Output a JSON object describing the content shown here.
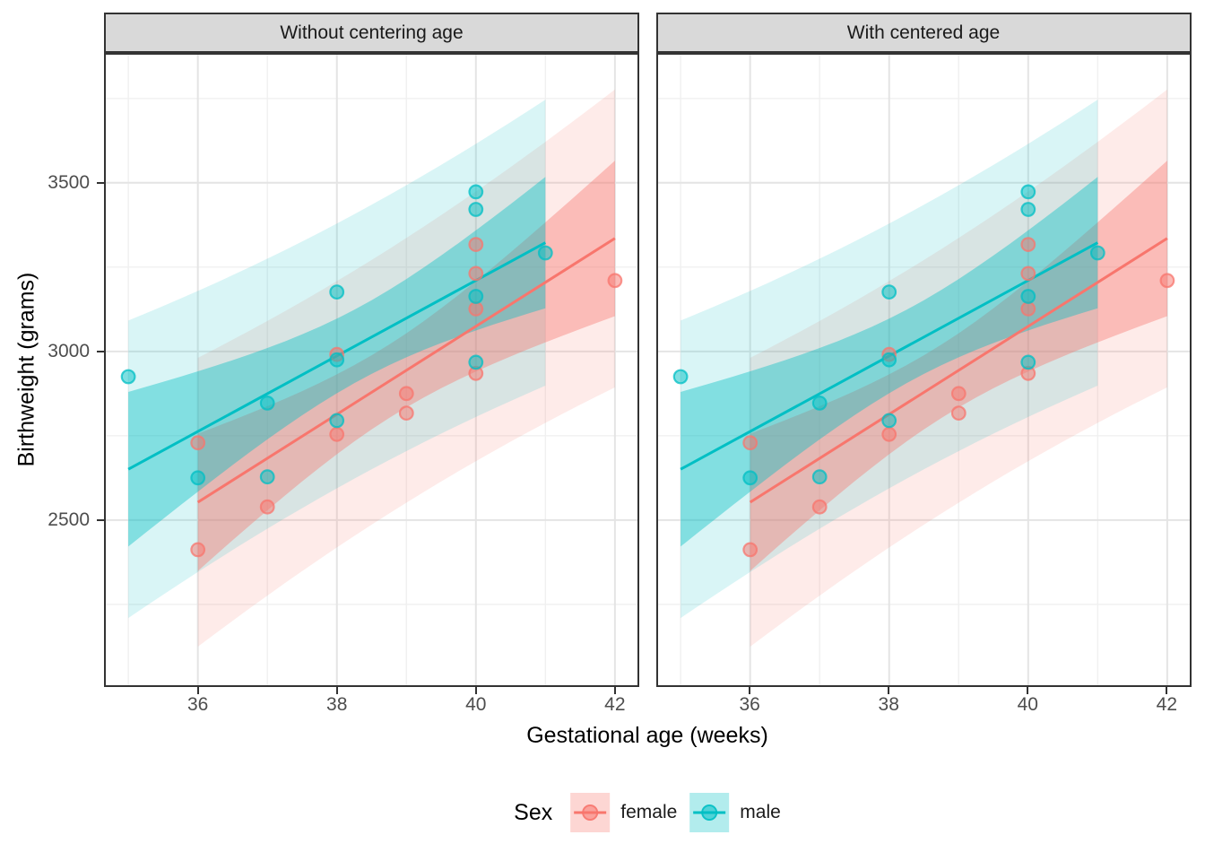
{
  "figure": {
    "facets": [
      {
        "label": "Without centering age"
      },
      {
        "label": "With centered age"
      }
    ],
    "x_axis": {
      "title": "Gestational age (weeks)"
    },
    "y_axis": {
      "title": "Birthweight (grams)"
    },
    "legend": {
      "title": "Sex",
      "entries": [
        {
          "label": "female",
          "color": "#F8766D"
        },
        {
          "label": "male",
          "color": "#00BFC4"
        }
      ]
    }
  },
  "chart_data": {
    "type": "scatter",
    "title": "",
    "xlabel": "Gestational age (weeks)",
    "ylabel": "Birthweight (grams)",
    "facets": [
      "Without centering age",
      "With centered age"
    ],
    "facet_note": "both facets display identical data, fits and intervals",
    "xlim": [
      34.65,
      42.35
    ],
    "ylim": [
      2005,
      3885
    ],
    "x_ticks": [
      36,
      38,
      40,
      42
    ],
    "x_minor_ticks": [
      35,
      37,
      39,
      41
    ],
    "y_ticks": [
      2500,
      3000,
      3500
    ],
    "y_minor_ticks": [
      2250,
      2750,
      3250,
      3750
    ],
    "grid": true,
    "legend_position": "bottom",
    "series": [
      {
        "name": "female",
        "color": "#F8766D",
        "points": [
          [
            36,
            2412
          ],
          [
            36,
            2729
          ],
          [
            37,
            2539
          ],
          [
            38,
            2754
          ],
          [
            38,
            2991
          ],
          [
            39,
            2817
          ],
          [
            39,
            2875
          ],
          [
            40,
            2935
          ],
          [
            40,
            3126
          ],
          [
            40,
            3231
          ],
          [
            40,
            3317
          ],
          [
            42,
            3210
          ]
        ],
        "fit": {
          "slope": 130.4,
          "intercept": -2141.67,
          "x_range": [
            36,
            42
          ],
          "n": 12,
          "x_mean": 38.75,
          "sxx": 36.25
        }
      },
      {
        "name": "male",
        "color": "#00BFC4",
        "points": [
          [
            35,
            2925
          ],
          [
            36,
            2625
          ],
          [
            37,
            2628
          ],
          [
            37,
            2847
          ],
          [
            38,
            2795
          ],
          [
            38,
            2975
          ],
          [
            38,
            3176
          ],
          [
            40,
            2968
          ],
          [
            40,
            3163
          ],
          [
            40,
            3421
          ],
          [
            40,
            3473
          ],
          [
            41,
            3292
          ]
        ],
        "fit": {
          "slope": 111.98,
          "intercept": -1268.67,
          "x_range": [
            35,
            41
          ],
          "n": 12,
          "x_mean": 38.333,
          "sxx": 38.667
        }
      }
    ],
    "bands": {
      "inner": "95% confidence interval",
      "outer": "95% prediction interval",
      "t_times_s": 376.7,
      "inner_opacity": 0.4,
      "outer_opacity": 0.15
    },
    "colors": {
      "strip_fill": "#D9D9D9",
      "panel_border": "#333333",
      "grid_major": "#E4E4E4",
      "grid_minor": "#F0F0F0",
      "axis_text": "#4D4D4D"
    }
  }
}
